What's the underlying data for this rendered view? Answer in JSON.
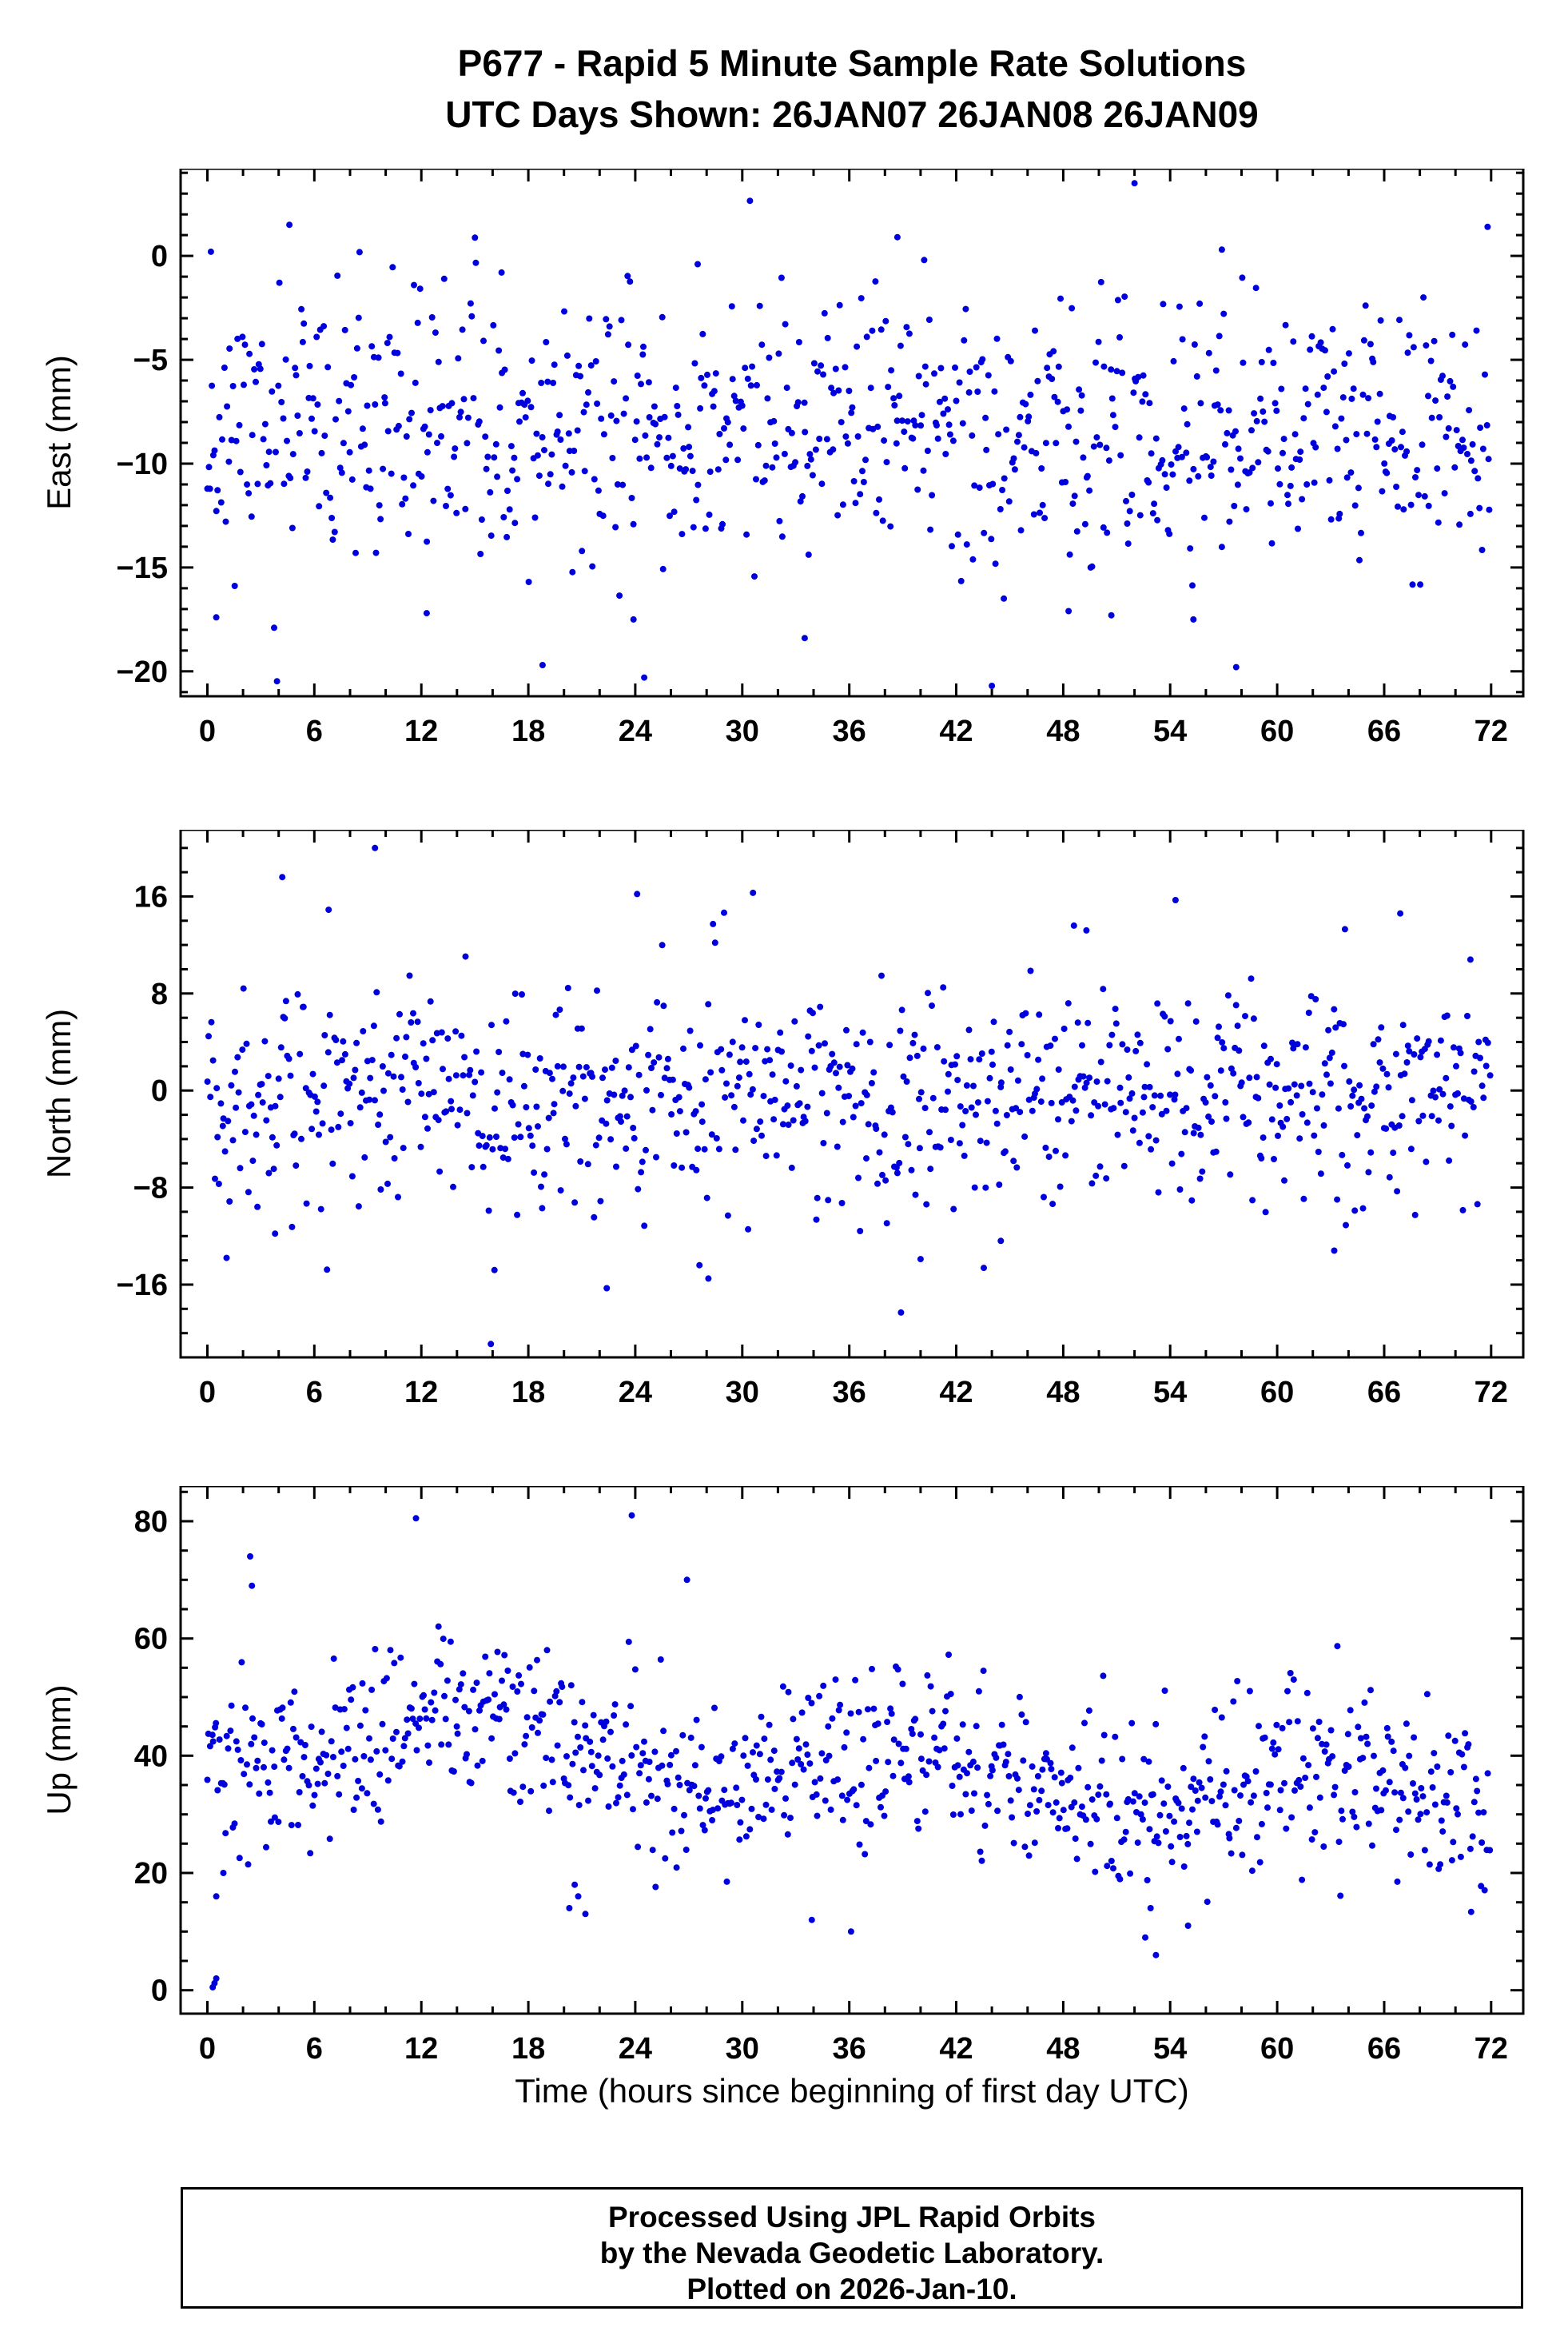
{
  "title": {
    "line1": "P677 - Rapid 5 Minute Sample Rate Solutions",
    "line2": "UTC Days Shown:  26JAN07 26JAN08 26JAN09"
  },
  "xlabel": "Time (hours since beginning of first day UTC)",
  "footer": {
    "line1": "Processed Using JPL Rapid Orbits",
    "line2": "by the Nevada Geodetic Laboratory.",
    "line3": "Plotted on 2026-Jan-10."
  },
  "colors": {
    "marker": "#0000dd",
    "frame": "#000000",
    "background": "#ffffff"
  },
  "chart_data": {
    "type": "scatter",
    "title": "P677 - Rapid 5 Minute Sample Rate Solutions",
    "subtitle": "UTC Days Shown:  26JAN07 26JAN08 26JAN09",
    "xlabel": "Time (hours since beginning of first day UTC)",
    "x_unit": "hours",
    "sample_interval_minutes": 5,
    "xlim": [
      -1.5,
      73.8
    ],
    "xticks": [
      0,
      6,
      12,
      18,
      24,
      30,
      36,
      42,
      48,
      54,
      60,
      66,
      72
    ],
    "x_minor": 2,
    "grid": false,
    "legend": false,
    "panels": [
      {
        "name": "east",
        "ylabel": "East (mm)",
        "ylim": [
          -21.2,
          4.2
        ],
        "yticks": [
          0,
          -5,
          -10,
          -15,
          -20
        ],
        "y_minor": 1,
        "n": 850,
        "mean": -8.4,
        "sd": 3.2,
        "trend_per_hour": 0,
        "wave_amp": 0,
        "wave_period": 24,
        "wave_phase": 0,
        "clip": [
          -20.8,
          3.6
        ],
        "seed": 11,
        "outliers": [
          [
            0.2,
            0.2
          ],
          [
            4.6,
            1.5
          ],
          [
            52.0,
            3.5
          ],
          [
            71.8,
            1.4
          ],
          [
            38.7,
            0.9
          ],
          [
            40.2,
            -0.2
          ],
          [
            56.9,
            0.3
          ],
          [
            16.5,
            -0.8
          ],
          [
            27.5,
            -0.4
          ],
          [
            44.0,
            -20.7
          ],
          [
            24.5,
            -20.3
          ],
          [
            18.8,
            -19.7
          ],
          [
            57.7,
            -19.8
          ],
          [
            23.9,
            -17.5
          ],
          [
            0.5,
            -17.4
          ],
          [
            33.5,
            -18.4
          ],
          [
            12.3,
            -17.2
          ],
          [
            48.3,
            -17.1
          ],
          [
            50.7,
            -17.3
          ],
          [
            55.3,
            -17.5
          ]
        ]
      },
      {
        "name": "north",
        "ylabel": "North (mm)",
        "ylim": [
          -22.0,
          21.5
        ],
        "yticks": [
          16,
          8,
          0,
          -8,
          -16
        ],
        "y_minor": 2,
        "n": 850,
        "mean": -0.4,
        "sd": 4.3,
        "trend_per_hour": 0,
        "wave_amp": 0,
        "wave_period": 24,
        "wave_phase": 0,
        "clip": [
          -20.9,
          20.3
        ],
        "seed": 22,
        "outliers": [
          [
            9.4,
            20.0
          ],
          [
            4.2,
            17.6
          ],
          [
            24.1,
            16.2
          ],
          [
            30.6,
            16.3
          ],
          [
            6.8,
            14.9
          ],
          [
            48.6,
            13.6
          ],
          [
            49.3,
            13.2
          ],
          [
            54.3,
            15.7
          ],
          [
            63.8,
            13.3
          ],
          [
            66.9,
            14.6
          ],
          [
            15.9,
            -20.9
          ],
          [
            16.1,
            -14.8
          ],
          [
            22.4,
            -16.3
          ],
          [
            28.1,
            -15.5
          ],
          [
            27.6,
            -14.4
          ],
          [
            38.9,
            -18.3
          ],
          [
            40.0,
            -13.9
          ],
          [
            63.2,
            -13.2
          ],
          [
            3.8,
            -11.8
          ],
          [
            44.5,
            -12.4
          ]
        ]
      },
      {
        "name": "up",
        "ylabel": "Up (mm)",
        "ylim": [
          -4.0,
          86.0
        ],
        "yticks": [
          80,
          60,
          40,
          20,
          0
        ],
        "y_minor": 5,
        "n": 850,
        "mean": 43.5,
        "sd": 7.2,
        "trend_per_hour": -0.16,
        "wave_amp": 5,
        "wave_period": 24,
        "wave_phase": 9,
        "clip": [
          4.5,
          82.5
        ],
        "seed": 33,
        "outliers": [
          [
            0.3,
            0.5
          ],
          [
            0.4,
            1.2
          ],
          [
            0.5,
            2.0
          ],
          [
            0.5,
            16
          ],
          [
            0.9,
            20
          ],
          [
            2.4,
            74
          ],
          [
            2.5,
            69
          ],
          [
            11.7,
            80.5
          ],
          [
            23.8,
            81
          ],
          [
            26.9,
            70
          ],
          [
            20.3,
            14
          ],
          [
            20.8,
            16
          ],
          [
            21.2,
            13
          ],
          [
            20.6,
            18
          ],
          [
            53.2,
            6
          ],
          [
            52.6,
            9
          ],
          [
            55.0,
            11
          ],
          [
            36.1,
            10
          ],
          [
            33.9,
            12
          ],
          [
            52.9,
            14
          ]
        ]
      }
    ]
  }
}
